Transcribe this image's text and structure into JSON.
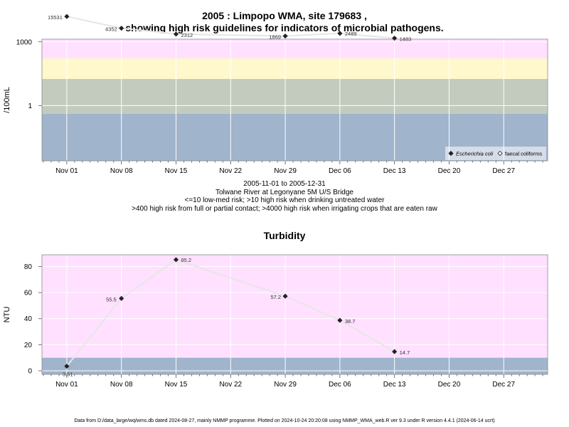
{
  "titles": {
    "line1": "2005 : Limpopo WMA, site 179683 ,",
    "line2": "showing high risk guidelines for indicators of microbial pathogens.",
    "turbidity": "Turbidity"
  },
  "caption": {
    "range": "2005-11-01 to 2005-12-31",
    "site": "Tolwane River at Legonyane 5M U/S Bridge",
    "guide1": "<=10 low-med risk; >10 high risk when drinking untreated water",
    "guide2": ">400 high risk from full or partial contact; >4000 high risk when irrigating crops that are eaten raw"
  },
  "footer": "Data from D:/data_large/wq/wms.db dated 2024-08-27, mainly NMMP programme. Plotted on 2024-10-24 20:20:08 using NMMP_WMA_web.R ver 9.3 under R version 4.4.1 (2024-06-14 ucrt)",
  "colors": {
    "pink": "#ffe0ff",
    "yellow": "#fff8cc",
    "grey": "#c3cbbf",
    "blue": "#a0b4cc",
    "line": "#e6e6e6",
    "grid": "#ffffff"
  },
  "chart_data": [
    {
      "type": "line",
      "title": "",
      "xlabel": "",
      "ylabel": "/100mL",
      "y_scale": "log",
      "x_ticks": [
        "Nov 01",
        "Nov 08",
        "Nov 15",
        "Nov 22",
        "Nov 29",
        "Dec 06",
        "Dec 13",
        "Dec 20",
        "Dec 27"
      ],
      "y_ticks": [
        "1",
        "1000"
      ],
      "grid": true,
      "legend_position": "bottom-right",
      "bands": [
        {
          "from": 4000,
          "color": "pink"
        },
        {
          "from": 400,
          "to": 4000,
          "color": "yellow"
        },
        {
          "from": 10,
          "to": 400,
          "color": "grey"
        },
        {
          "to": 10,
          "color": "blue"
        }
      ],
      "series": [
        {
          "name": "Escherichia coli",
          "marker": "filled-diamond",
          "points": [
            {
              "x": "2005-11-01",
              "y": 15531,
              "label": "15531"
            },
            {
              "x": "2005-11-08",
              "y": 4352,
              "label": "4352"
            },
            {
              "x": "2005-11-15",
              "y": 2312,
              "label": "2312"
            },
            {
              "x": "2005-11-29",
              "y": 1869,
              "label": "1869"
            },
            {
              "x": "2005-12-06",
              "y": 2489,
              "label": "2489"
            },
            {
              "x": "2005-12-13",
              "y": 1483,
              "label": "1483"
            }
          ]
        },
        {
          "name": "faecal coliforms",
          "marker": "open-diamond",
          "points": []
        }
      ]
    },
    {
      "type": "line",
      "title": "Turbidity",
      "xlabel": "",
      "ylabel": "NTU",
      "y_scale": "linear",
      "x_ticks": [
        "Nov 01",
        "Nov 08",
        "Nov 15",
        "Nov 22",
        "Nov 29",
        "Dec 06",
        "Dec 13",
        "Dec 20",
        "Dec 27"
      ],
      "y_ticks": [
        0,
        20,
        40,
        60,
        80
      ],
      "grid": true,
      "bands": [
        {
          "from": 10,
          "color": "pink"
        },
        {
          "to": 10,
          "color": "blue"
        }
      ],
      "series": [
        {
          "marker": "filled-diamond",
          "points": [
            {
              "x": "2005-11-01",
              "y": 3.51,
              "label": "3.51"
            },
            {
              "x": "2005-11-08",
              "y": 55.5,
              "label": "55.5"
            },
            {
              "x": "2005-11-15",
              "y": 85.2,
              "label": "85.2"
            },
            {
              "x": "2005-11-29",
              "y": 57.2,
              "label": "57.2"
            },
            {
              "x": "2005-12-06",
              "y": 38.7,
              "label": "38.7"
            },
            {
              "x": "2005-12-13",
              "y": 14.7,
              "label": "14.7"
            }
          ]
        }
      ]
    }
  ]
}
